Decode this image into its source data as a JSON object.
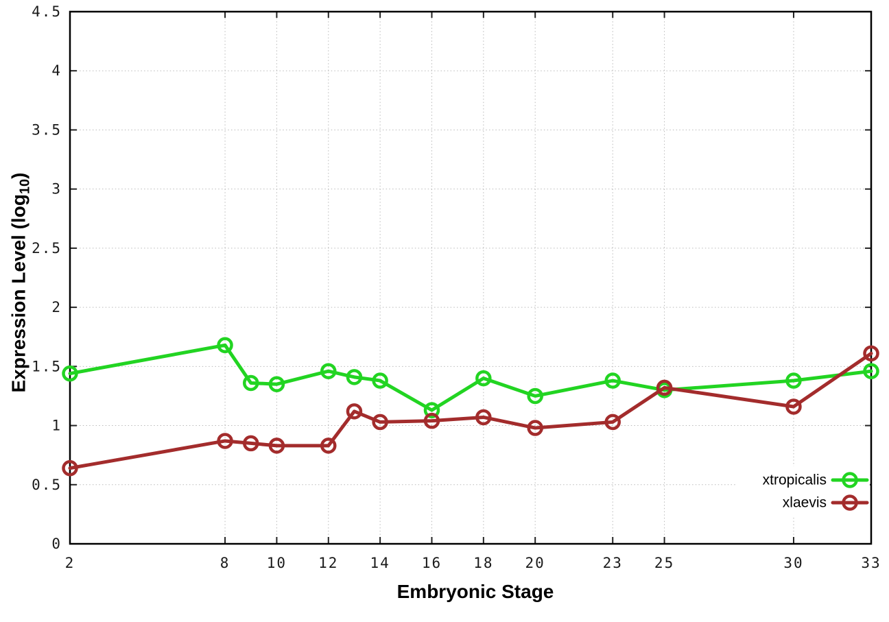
{
  "chart_data": {
    "type": "line",
    "title": "",
    "xlabel": "Embryonic Stage",
    "ylabel": "Expression Level (log10)",
    "ylabel_main": "Expression Level (log",
    "ylabel_sub": "10",
    "ylabel_close": ")",
    "xlim": [
      2,
      33
    ],
    "ylim": [
      0,
      4.5
    ],
    "x_ticks": [
      "2",
      "8",
      "10",
      "12",
      "14",
      "16",
      "18",
      "20",
      "23",
      "25",
      "30",
      "33"
    ],
    "y_ticks": [
      "0",
      "0.5",
      "1",
      "1.5",
      "2",
      "2.5",
      "3",
      "3.5",
      "4",
      "4.5"
    ],
    "grid": "dotted",
    "legend_position": "inside-bottom-right",
    "x": [
      2,
      8,
      9,
      10,
      12,
      13,
      14,
      16,
      18,
      20,
      23,
      25,
      30,
      33
    ],
    "series": [
      {
        "name": "xtropicalis",
        "color": "#22d422",
        "values": [
          1.44,
          1.68,
          1.36,
          1.35,
          1.46,
          1.41,
          1.38,
          1.13,
          1.4,
          1.25,
          1.38,
          1.3,
          1.38,
          1.46
        ]
      },
      {
        "name": "xlaevis",
        "color": "#a32c2c",
        "values": [
          0.64,
          0.87,
          0.85,
          0.83,
          0.83,
          1.12,
          1.03,
          1.04,
          1.07,
          0.98,
          1.03,
          1.32,
          1.16,
          1.61
        ]
      }
    ]
  },
  "colors": {
    "background": "#ffffff",
    "border": "#000000",
    "grid": "#b9b9b9",
    "tick": "#222222",
    "tick_label": "#1a1a1a",
    "legend_text": "#000000"
  }
}
